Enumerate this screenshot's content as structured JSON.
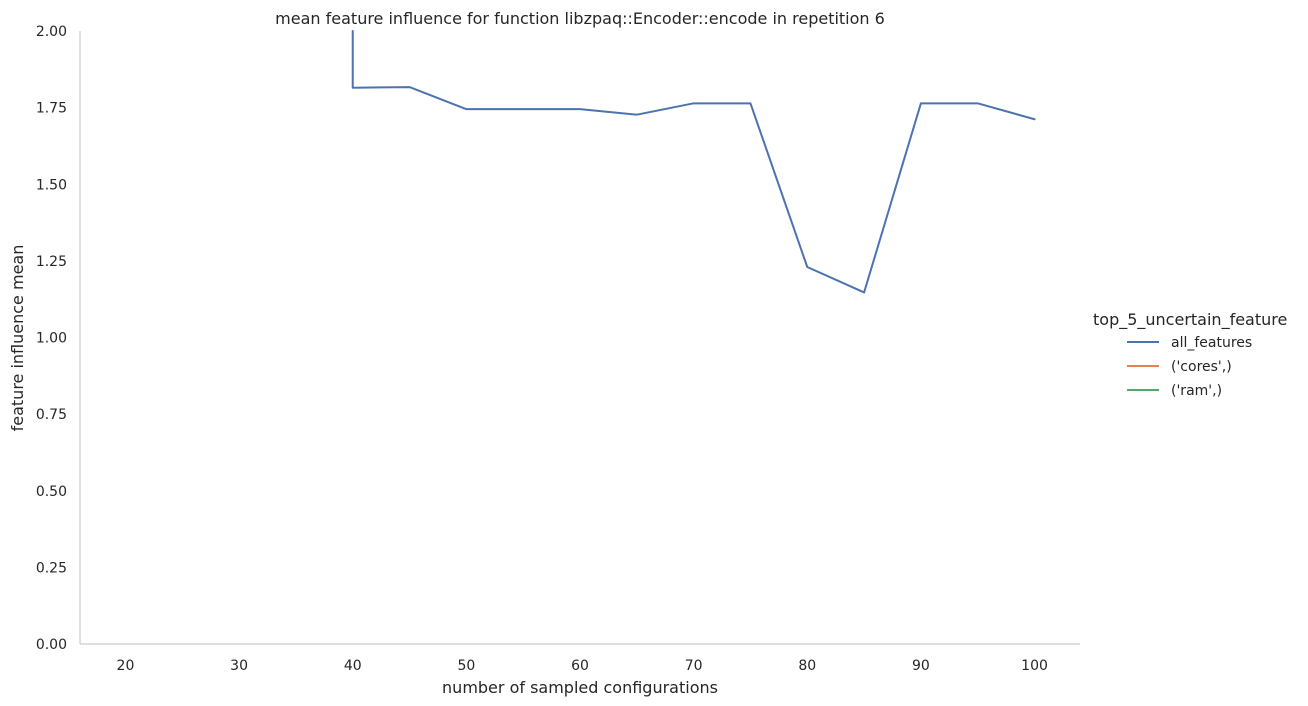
{
  "chart_data": {
    "type": "line",
    "title": "mean feature influence for function libzpaq::Encoder::encode in repetition 6",
    "xlabel": "number of sampled configurations",
    "ylabel": "feature influence mean",
    "xlim": [
      16,
      104
    ],
    "ylim": [
      0,
      2.0
    ],
    "x_ticks": [
      20,
      30,
      40,
      50,
      60,
      70,
      80,
      90,
      100
    ],
    "y_ticks": [
      0.0,
      0.25,
      0.5,
      0.75,
      1.0,
      1.25,
      1.5,
      1.75,
      2.0
    ],
    "y_tick_labels": [
      "0.00",
      "0.25",
      "0.50",
      "0.75",
      "1.00",
      "1.25",
      "1.50",
      "1.75",
      "2.00"
    ],
    "grid": false,
    "legend": {
      "title": "top_5_uncertain_feature",
      "placement": "right"
    },
    "series": [
      {
        "name": "all_features",
        "color": "#4c72b0",
        "x": [
          40,
          40,
          45,
          50,
          55,
          60,
          65,
          70,
          75,
          80,
          85,
          90,
          95,
          100
        ],
        "y": [
          2.0,
          1.815,
          1.817,
          1.745,
          1.745,
          1.745,
          1.727,
          1.764,
          1.764,
          1.23,
          1.147,
          1.764,
          1.764,
          1.712
        ]
      },
      {
        "name": "('cores',)",
        "color": "#dd8452",
        "x": [],
        "y": []
      },
      {
        "name": "('ram',)",
        "color": "#55a868",
        "x": [],
        "y": []
      }
    ]
  }
}
